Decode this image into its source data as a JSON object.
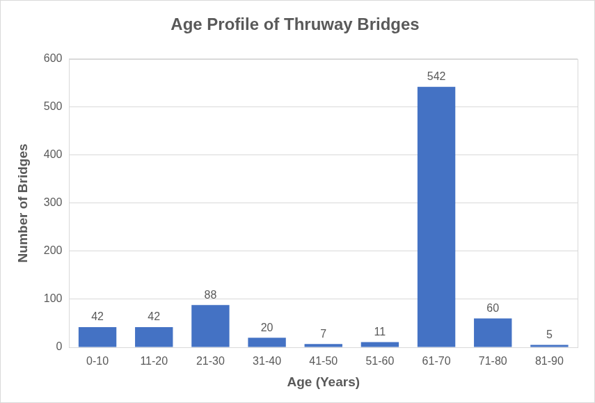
{
  "chart_data": {
    "type": "bar",
    "title": "Age Profile of Thruway Bridges",
    "x_label": "Age (Years)",
    "y_label": "Number of Bridges",
    "categories": [
      "0-10",
      "11-20",
      "21-30",
      "31-40",
      "41-50",
      "51-60",
      "61-70",
      "71-80",
      "81-90"
    ],
    "values": [
      42,
      42,
      88,
      20,
      7,
      11,
      542,
      60,
      5
    ],
    "color": "#4472c4",
    "ylim": [
      0,
      600
    ],
    "yticks": [
      0,
      100,
      200,
      300,
      400,
      500,
      600
    ],
    "grid": true,
    "data_labels": true
  }
}
